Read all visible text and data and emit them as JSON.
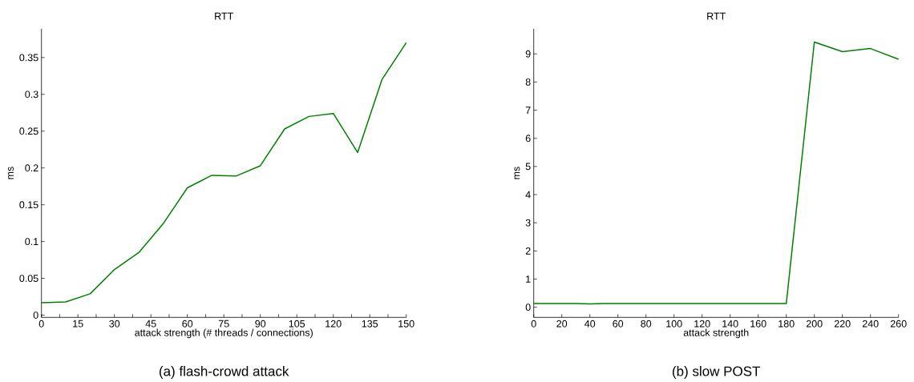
{
  "chart_data": [
    {
      "type": "line",
      "title": "RTT",
      "xlabel": "attack strength (# threads / connections)",
      "ylabel": "ms",
      "color": "#008000",
      "x": [
        0,
        10,
        20,
        30,
        40,
        50,
        60,
        70,
        80,
        90,
        100,
        110,
        120,
        130,
        140,
        150
      ],
      "values": [
        0.017,
        0.018,
        0.029,
        0.062,
        0.085,
        0.124,
        0.173,
        0.19,
        0.189,
        0.203,
        0.253,
        0.27,
        0.274,
        0.221,
        0.32,
        0.37
      ],
      "xlim": [
        0,
        150
      ],
      "ylim": [
        -0.003,
        0.389
      ],
      "xticks": [
        0,
        {
          "value": 7.5,
          "label": null
        },
        15,
        {
          "value": 22.5,
          "label": null
        },
        30,
        {
          "value": 37.5,
          "label": null
        },
        45,
        {
          "value": 52.5,
          "label": null
        },
        60,
        {
          "value": 67.5,
          "label": null
        },
        75,
        {
          "value": 82.5,
          "label": null
        },
        90,
        {
          "value": 97.5,
          "label": null
        },
        105,
        {
          "value": 112.5,
          "label": null
        },
        120,
        {
          "value": 127.5,
          "label": null
        },
        135,
        {
          "value": 142.5,
          "label": null
        },
        150
      ],
      "yticks": [
        0,
        0.05,
        0.1,
        0.15,
        0.2,
        0.25,
        0.3,
        0.35
      ],
      "annotations": [
        "(a) flash-crowd attack"
      ]
    },
    {
      "type": "line",
      "title": "RTT",
      "xlabel": "attack strength",
      "ylabel": "ms",
      "color": "#008000",
      "x": [
        0,
        10,
        20,
        30,
        40,
        50,
        60,
        70,
        80,
        90,
        100,
        110,
        120,
        130,
        140,
        150,
        160,
        170,
        180,
        200,
        220,
        240,
        260
      ],
      "values": [
        0.13,
        0.13,
        0.13,
        0.13,
        0.12,
        0.13,
        0.13,
        0.13,
        0.13,
        0.13,
        0.13,
        0.13,
        0.13,
        0.13,
        0.13,
        0.13,
        0.13,
        0.13,
        0.13,
        9.42,
        9.08,
        9.19,
        8.81
      ],
      "xlim": [
        0,
        260
      ],
      "ylim": [
        -0.36,
        9.89
      ],
      "xticks": [
        0,
        20,
        40,
        60,
        80,
        100,
        120,
        140,
        160,
        180,
        200,
        220,
        240,
        260
      ],
      "yticks": [
        0,
        1,
        2,
        3,
        4,
        5,
        6,
        7,
        8,
        9
      ],
      "annotations": [
        "(b) slow POST"
      ]
    }
  ]
}
